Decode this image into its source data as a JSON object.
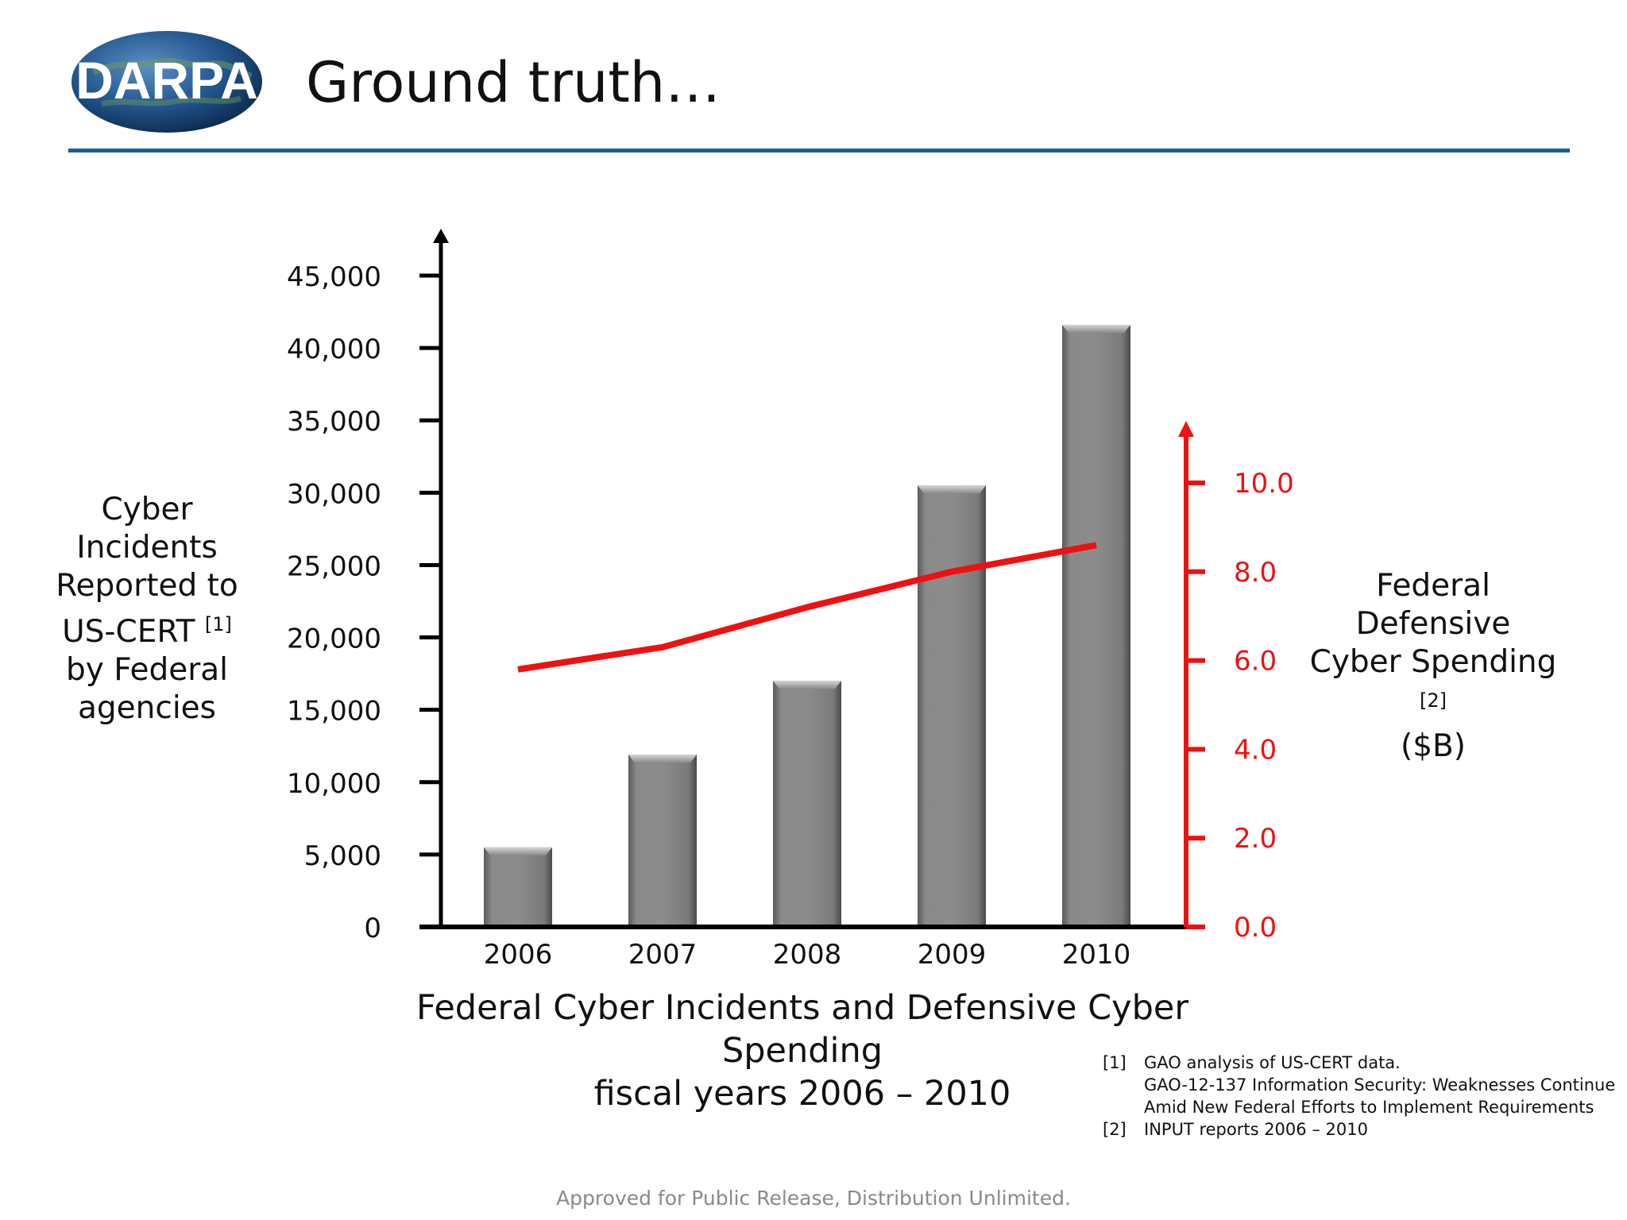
{
  "slide": {
    "title": "Ground truth…",
    "logo_text": "DARPA"
  },
  "chart_data": {
    "type": "bar",
    "title": "Federal Cyber Incidents and Defensive Cyber Spending",
    "subtitle": "fiscal years 2006 – 2010",
    "categories": [
      "2006",
      "2007",
      "2008",
      "2009",
      "2010"
    ],
    "series": [
      {
        "name": "Cyber Incidents Reported to US-CERT by Federal agencies",
        "type": "bar",
        "axis": "left",
        "values": [
          5500,
          11900,
          17000,
          30500,
          41600
        ],
        "color": "#858585"
      },
      {
        "name": "Federal Defensive Cyber Spending ($B)",
        "type": "line",
        "axis": "right",
        "values": [
          5.8,
          6.3,
          7.2,
          8.0,
          8.6
        ],
        "color": "#ee1111"
      }
    ],
    "y_left": {
      "label_lines": [
        "Cyber Incidents",
        "Reported to",
        "US-CERT",
        "by Federal",
        "agencies"
      ],
      "label_ref": "[1]",
      "ylim": [
        0,
        45000
      ],
      "ticks": [
        "0",
        "5,000",
        "10,000",
        "15,000",
        "20,000",
        "25,000",
        "30,000",
        "35,000",
        "40,000",
        "45,000"
      ],
      "color": "#000000"
    },
    "y_right": {
      "label_lines": [
        "Federal Defensive",
        "Cyber Spending",
        "($B)"
      ],
      "label_ref": "[2]",
      "ylim": [
        0,
        10
      ],
      "ticks": [
        "0.0",
        "2.0",
        "4.0",
        "6.0",
        "8.0",
        "10.0"
      ],
      "color": "#ee1111"
    },
    "grid": false
  },
  "footnotes": [
    {
      "num": "[1]",
      "lines": [
        "GAO analysis of US-CERT data.",
        "GAO-12-137 Information Security: Weaknesses Continue",
        "Amid New Federal Efforts to Implement Requirements"
      ]
    },
    {
      "num": "[2]",
      "lines": [
        "INPUT reports 2006 – 2010"
      ]
    }
  ],
  "footer": "Approved for Public Release, Distribution Unlimited."
}
